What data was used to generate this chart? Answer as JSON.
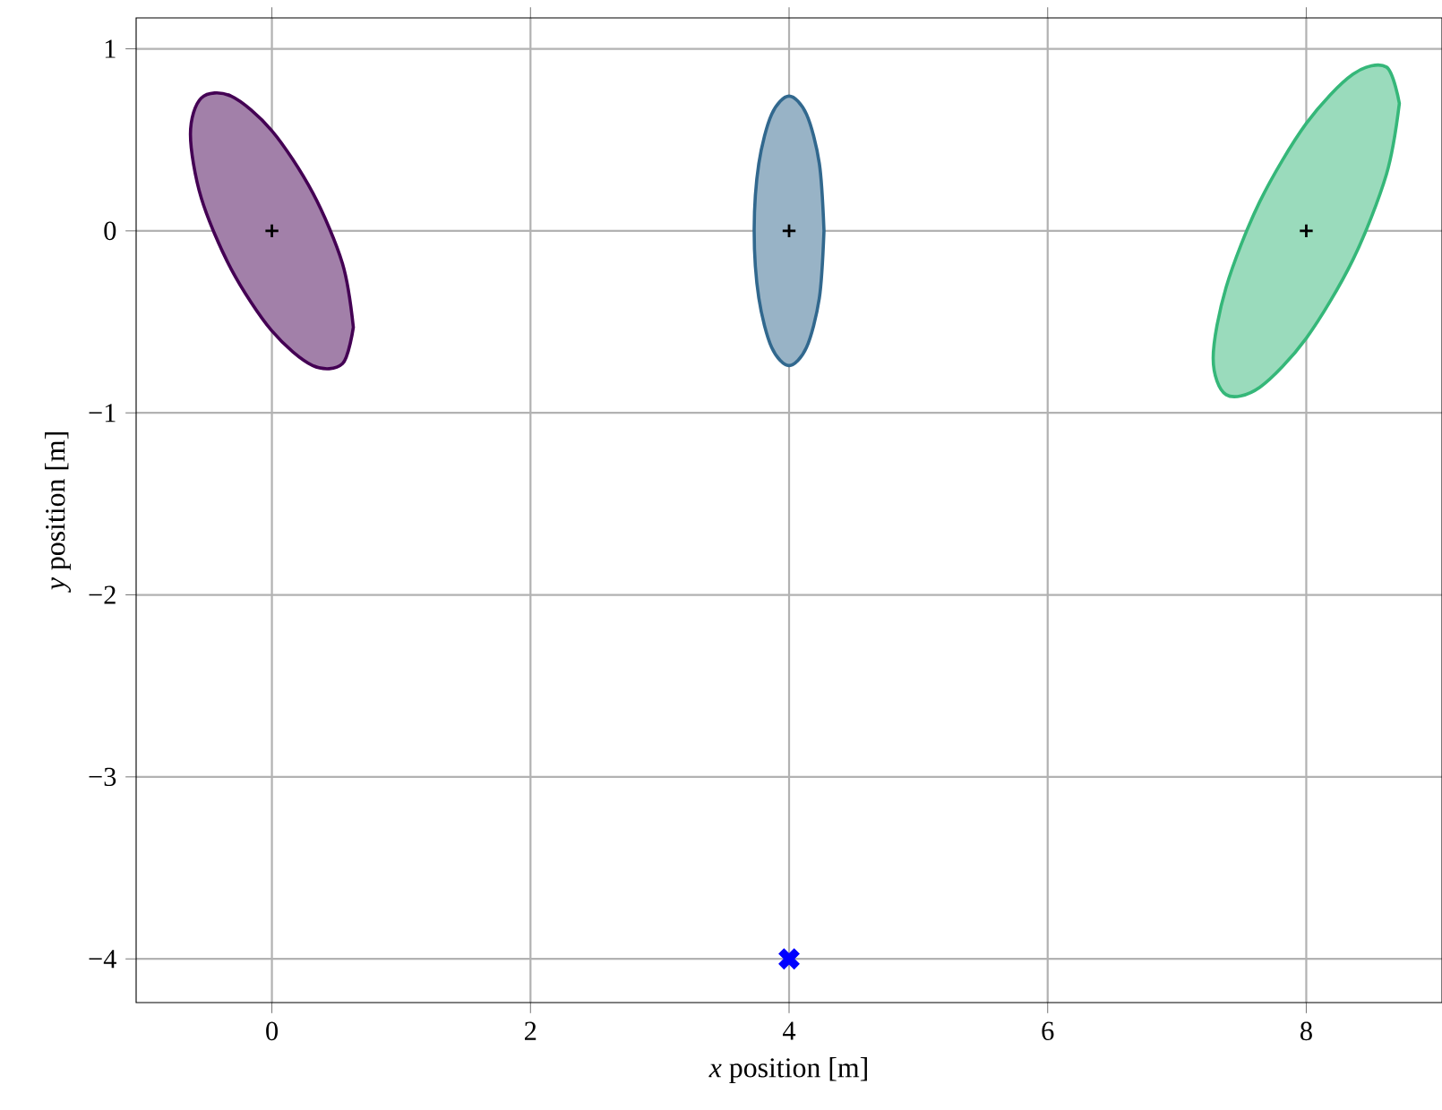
{
  "chart_data": {
    "type": "scatter",
    "xlabel": "*x* position [m]",
    "ylabel": "*y* position [m]",
    "xlim": [
      -1.05,
      9.05
    ],
    "ylim": [
      -4.24,
      1.17
    ],
    "xticks": [
      0,
      2,
      4,
      6,
      8
    ],
    "yticks": [
      {
        "value": -4,
        "label": "−4"
      },
      {
        "value": -3,
        "label": "−3"
      },
      {
        "value": -2,
        "label": "−2"
      },
      {
        "value": -1,
        "label": "−1"
      },
      0,
      1
    ],
    "grid": true,
    "series": [
      {
        "type": "area",
        "color": "#440154",
        "x": [
          0.63,
          0.546,
          0.315,
          0,
          -0.315,
          -0.546,
          -0.63,
          -0.546,
          -0.315,
          0,
          0.315,
          0.546,
          0.63
        ],
        "values": [
          -0.53,
          -0.18,
          0.21,
          0.55,
          0.74,
          0.73,
          0.53,
          0.18,
          -0.21,
          -0.55,
          -0.74,
          -0.73,
          -0.53
        ]
      },
      {
        "type": "area",
        "color": "#31688e",
        "x": [
          4.27,
          4.234,
          4.135,
          4,
          3.865,
          3.766,
          3.73,
          3.766,
          3.865,
          4,
          4.135,
          4.234,
          4.27
        ],
        "values": [
          0,
          0.37,
          0.64,
          0.74,
          0.64,
          0.37,
          0,
          -0.37,
          -0.64,
          -0.74,
          -0.64,
          -0.37,
          0
        ]
      },
      {
        "type": "area",
        "color": "#35b779",
        "x": [
          8.72,
          8.62,
          8.36,
          8,
          7.64,
          7.38,
          7.28,
          7.38,
          7.64,
          8,
          8.36,
          8.62,
          8.72
        ],
        "values": [
          0.7,
          0.9,
          0.86,
          0.59,
          0.16,
          -0.31,
          -0.7,
          -0.9,
          -0.86,
          -0.59,
          -0.16,
          0.31,
          0.7
        ]
      },
      {
        "marker": "plus",
        "color": "#000000",
        "x": [
          0,
          4,
          8
        ],
        "values": [
          0,
          0,
          0
        ]
      },
      {
        "marker": "cross",
        "color": "#0000ff",
        "x": [
          4
        ],
        "values": [
          -4
        ]
      }
    ]
  }
}
